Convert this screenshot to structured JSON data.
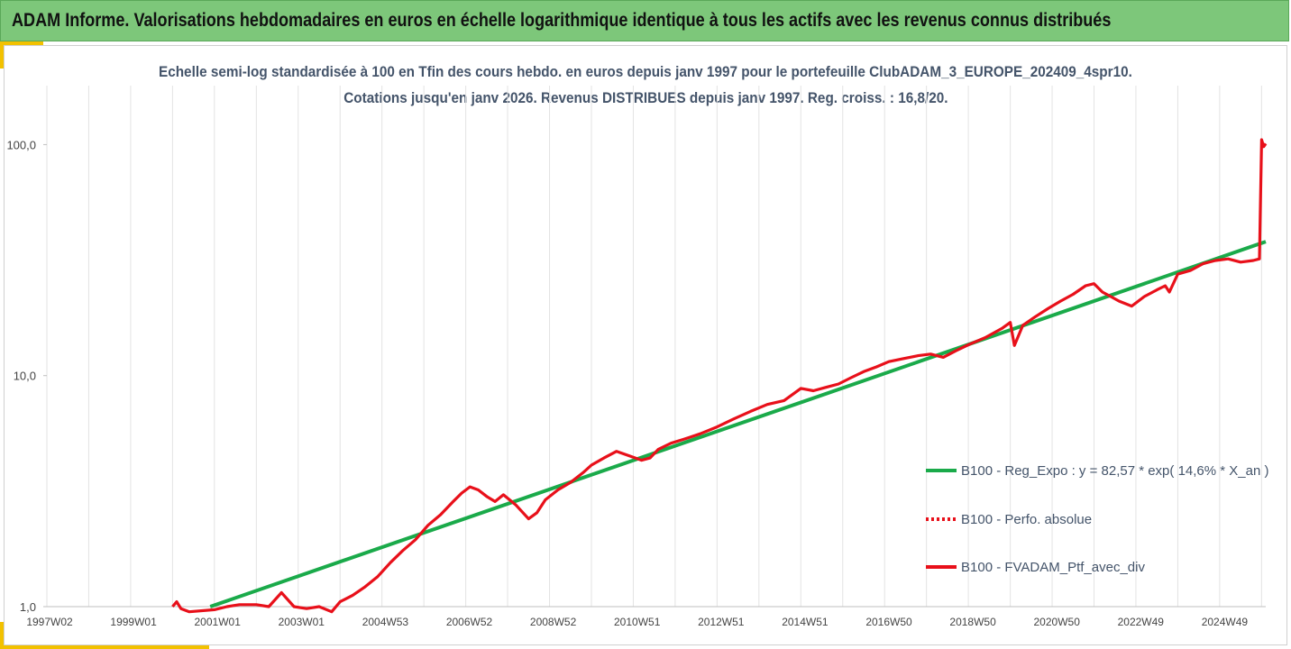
{
  "header": {
    "title": "ADAM Informe. Valorisations hebdomadaires en euros en échelle logarithmique identique à tous les actifs avec les revenus connus distribués"
  },
  "chart_data": {
    "type": "line",
    "title_line1": "Echelle semi-log standardisée à 100 en Tfin des cours hebdo. en euros depuis janv 1997 pour le portefeuille ClubADAM_3_EUROPE_202409_4spr10.",
    "title_line2": "Cotations jusqu'en janv 2026. Revenus DISTRIBUES depuis janv 1997. Reg. croiss. : 16,8/20.",
    "yscale": "log",
    "ylim": [
      1,
      180
    ],
    "y_tick_labels": [
      "1,0",
      "10,0",
      "100,0"
    ],
    "y_tick_values": [
      1,
      10,
      100
    ],
    "x_tick_labels": [
      "1997W02",
      "1999W01",
      "2001W01",
      "2003W01",
      "2004W53",
      "2006W52",
      "2008W52",
      "2010W51",
      "2012W51",
      "2014W51",
      "2016W50",
      "2018W50",
      "2020W50",
      "2022W49",
      "2024W49"
    ],
    "xlim": [
      1997.0,
      2026.1
    ],
    "grid": "vertical",
    "legend_position": "right",
    "series": [
      {
        "name": "B100 - Reg_Expo : y = 82,57 * exp( 14,6% *  X_an )",
        "color": "#1aaa4a",
        "style": "solid",
        "x": [
          2000.9,
          2026.1
        ],
        "y": [
          1.0,
          38.0
        ]
      },
      {
        "name": "B100 - Perfo. absolue",
        "color": "#e8101a",
        "style": "dotted",
        "x": [],
        "y": []
      },
      {
        "name": "B100 - FVADAM_Ptf_avec_div",
        "color": "#e8101a",
        "style": "solid",
        "x": [
          2000.0,
          2000.1,
          2000.2,
          2000.4,
          2001.0,
          2001.3,
          2001.6,
          2002.0,
          2002.3,
          2002.6,
          2002.9,
          2003.2,
          2003.5,
          2003.8,
          2004.0,
          2004.3,
          2004.6,
          2004.9,
          2005.2,
          2005.5,
          2005.8,
          2006.1,
          2006.4,
          2006.7,
          2006.9,
          2007.1,
          2007.3,
          2007.5,
          2007.7,
          2007.9,
          2008.2,
          2008.5,
          2008.7,
          2008.9,
          2009.2,
          2009.5,
          2009.8,
          2010.0,
          2010.3,
          2010.6,
          2010.9,
          2011.2,
          2011.4,
          2011.6,
          2011.9,
          2012.2,
          2012.6,
          2013.0,
          2013.4,
          2013.8,
          2014.2,
          2014.6,
          2015.0,
          2015.3,
          2015.6,
          2015.9,
          2016.2,
          2016.5,
          2016.8,
          2017.1,
          2017.4,
          2017.8,
          2018.1,
          2018.4,
          2018.7,
          2019.0,
          2019.4,
          2019.8,
          2020.0,
          2020.1,
          2020.3,
          2020.6,
          2020.9,
          2021.2,
          2021.5,
          2021.8,
          2022.0,
          2022.2,
          2022.4,
          2022.6,
          2022.9,
          2023.2,
          2023.5,
          2023.7,
          2023.8,
          2024.0,
          2024.3,
          2024.6,
          2024.9,
          2025.2,
          2025.5,
          2025.8,
          2025.95,
          2026.0,
          2026.05,
          2026.1
        ],
        "y": [
          1.0,
          1.05,
          0.98,
          0.95,
          0.97,
          1.0,
          1.02,
          1.02,
          1.0,
          1.15,
          1.0,
          0.98,
          1.0,
          0.95,
          1.05,
          1.12,
          1.22,
          1.35,
          1.55,
          1.75,
          1.95,
          2.25,
          2.5,
          2.85,
          3.1,
          3.3,
          3.2,
          3.0,
          2.85,
          3.05,
          2.75,
          2.4,
          2.55,
          2.9,
          3.2,
          3.45,
          3.8,
          4.1,
          4.4,
          4.7,
          4.5,
          4.3,
          4.4,
          4.8,
          5.1,
          5.3,
          5.6,
          6.0,
          6.5,
          7.0,
          7.5,
          7.8,
          8.8,
          8.6,
          8.9,
          9.2,
          9.8,
          10.4,
          10.9,
          11.5,
          11.8,
          12.2,
          12.4,
          12.0,
          12.8,
          13.6,
          14.6,
          16.0,
          17.0,
          13.5,
          16.5,
          18.0,
          19.5,
          21.0,
          22.5,
          24.5,
          25.0,
          23.0,
          22.0,
          21.0,
          20.0,
          22.0,
          23.5,
          24.5,
          23.0,
          27.5,
          28.5,
          30.5,
          31.5,
          32.0,
          31.0,
          31.5,
          32.0,
          105.0,
          98.0,
          101.0
        ]
      }
    ]
  }
}
